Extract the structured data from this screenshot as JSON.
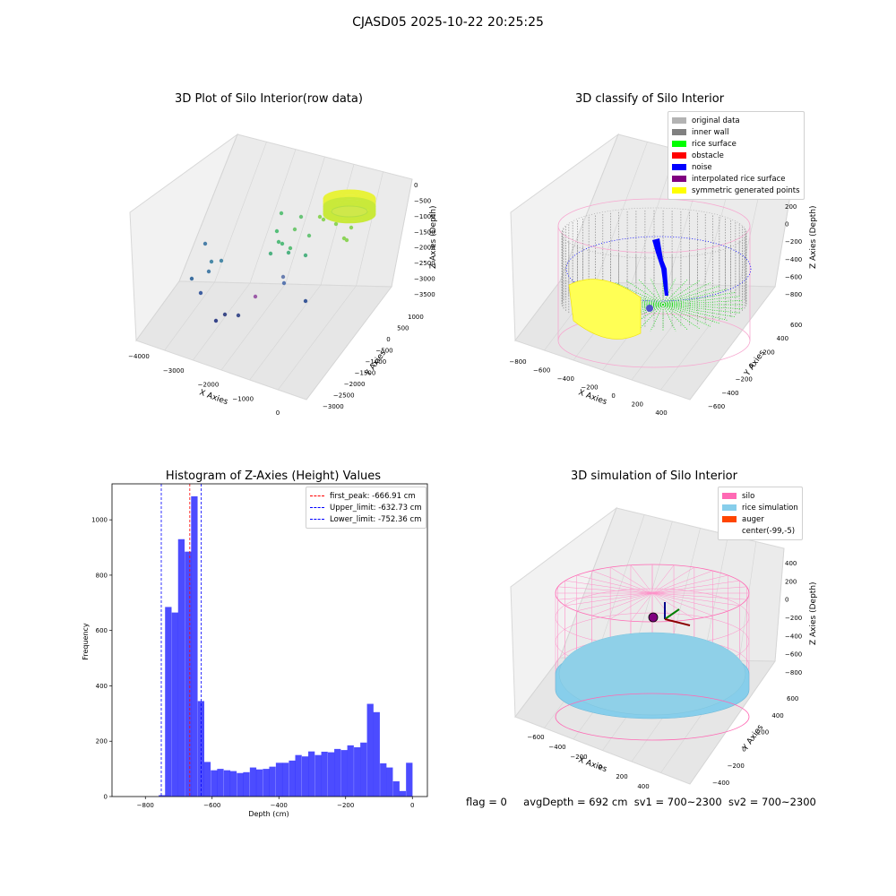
{
  "suptitle": "CJASD05 2025-10-22 20:25:25",
  "panels": {
    "raw": {
      "title": "3D Plot of Silo Interior(row data)",
      "xlabel": "X Axies",
      "ylabel": "Y Axies",
      "zlabel": "Z Axies (Depth)",
      "xticks": [
        "−4000",
        "−3000",
        "−2000",
        "−1000",
        "0"
      ],
      "yticks": [
        "1000",
        "500",
        "0",
        "−500",
        "−1000",
        "−1500",
        "−2000",
        "−2500",
        "−3000"
      ],
      "zticks": [
        "0",
        "−500",
        "−1000",
        "−1500",
        "−2000",
        "−2500",
        "−3000",
        "−3500"
      ]
    },
    "classify": {
      "title": "3D classify of Silo Interior",
      "xlabel": "X Axies",
      "ylabel": "Y Axies",
      "zlabel": "Z Axies (Depth)",
      "xticks": [
        "−800",
        "−600",
        "−400",
        "−200",
        "0",
        "200",
        "400"
      ],
      "yticks": [
        "600",
        "400",
        "200",
        "0",
        "−200",
        "−400",
        "−600"
      ],
      "zticks": [
        "200",
        "0",
        "−200",
        "−400",
        "−600",
        "−800"
      ],
      "legend": [
        {
          "label": "original data",
          "color": "#b3b3b3"
        },
        {
          "label": "inner wall",
          "color": "#808080"
        },
        {
          "label": "rice surface",
          "color": "#00ff00"
        },
        {
          "label": "obstacle",
          "color": "#ff0000"
        },
        {
          "label": "noise",
          "color": "#0000ff"
        },
        {
          "label": "interpolated rice surface",
          "color": "#800080"
        },
        {
          "label": "symmetric generated points",
          "color": "#ffff00"
        }
      ]
    },
    "simulation": {
      "title": "3D simulation of Silo Interior",
      "xlabel": "X Axies",
      "ylabel": "Y Axies",
      "zlabel": "Z Axies (Depth)",
      "xticks": [
        "−600",
        "−400",
        "−200",
        "0",
        "200",
        "400"
      ],
      "yticks": [
        "600",
        "400",
        "200",
        "0",
        "−200",
        "−400"
      ],
      "zticks": [
        "400",
        "200",
        "0",
        "−200",
        "−400",
        "−600",
        "−800"
      ],
      "legend": [
        {
          "label": "silo",
          "color": "#ff69b4"
        },
        {
          "label": "rice simulation",
          "color": "#87ceeb"
        },
        {
          "label": "auger",
          "color": "#ff4500"
        },
        {
          "label": "center(-99,-5)",
          "color": ""
        }
      ]
    }
  },
  "status": {
    "flag": "flag = 0",
    "avg_depth": "avgDepth = 692 cm",
    "sv1": "sv1 = 700~2300",
    "sv2": "sv2 = 700~2300"
  },
  "chart_data": {
    "type": "bar",
    "title": "Histogram of Z-Axies (Height) Values",
    "xlabel": "Depth (cm)",
    "ylabel": "Frequency",
    "xlim": [
      -900,
      45
    ],
    "ylim": [
      0,
      1130
    ],
    "xticks": [
      -800,
      -600,
      -400,
      -200,
      0
    ],
    "yticks": [
      0,
      200,
      400,
      600,
      800,
      1000
    ],
    "bar_color": "#0000ff",
    "bin_width": 19.5,
    "bins": [
      {
        "x0": -760,
        "value": 5
      },
      {
        "x0": -741,
        "value": 685
      },
      {
        "x0": -721,
        "value": 665
      },
      {
        "x0": -702,
        "value": 930
      },
      {
        "x0": -682,
        "value": 885
      },
      {
        "x0": -663,
        "value": 1085
      },
      {
        "x0": -643,
        "value": 345
      },
      {
        "x0": -624,
        "value": 125
      },
      {
        "x0": -604,
        "value": 95
      },
      {
        "x0": -585,
        "value": 100
      },
      {
        "x0": -565,
        "value": 95
      },
      {
        "x0": -546,
        "value": 92
      },
      {
        "x0": -526,
        "value": 85
      },
      {
        "x0": -507,
        "value": 88
      },
      {
        "x0": -487,
        "value": 105
      },
      {
        "x0": -468,
        "value": 98
      },
      {
        "x0": -448,
        "value": 100
      },
      {
        "x0": -429,
        "value": 108
      },
      {
        "x0": -409,
        "value": 122
      },
      {
        "x0": -390,
        "value": 122
      },
      {
        "x0": -370,
        "value": 130
      },
      {
        "x0": -351,
        "value": 150
      },
      {
        "x0": -331,
        "value": 145
      },
      {
        "x0": -312,
        "value": 163
      },
      {
        "x0": -292,
        "value": 150
      },
      {
        "x0": -273,
        "value": 162
      },
      {
        "x0": -253,
        "value": 160
      },
      {
        "x0": -234,
        "value": 172
      },
      {
        "x0": -214,
        "value": 168
      },
      {
        "x0": -195,
        "value": 185
      },
      {
        "x0": -175,
        "value": 178
      },
      {
        "x0": -156,
        "value": 195
      },
      {
        "x0": -136,
        "value": 335
      },
      {
        "x0": -117,
        "value": 305
      },
      {
        "x0": -97,
        "value": 120
      },
      {
        "x0": -78,
        "value": 105
      },
      {
        "x0": -58,
        "value": 55
      },
      {
        "x0": -39,
        "value": 20
      },
      {
        "x0": -19,
        "value": 122
      }
    ],
    "vlines": [
      {
        "label": "first_peak: -666.91 cm",
        "x": -666.91,
        "color": "#ff0000"
      },
      {
        "label": "Upper_limit: -632.73 cm",
        "x": -632.73,
        "color": "#0000ff"
      },
      {
        "label": "Lower_limit: -752.36 cm",
        "x": -752.36,
        "color": "#0000ff"
      }
    ]
  }
}
